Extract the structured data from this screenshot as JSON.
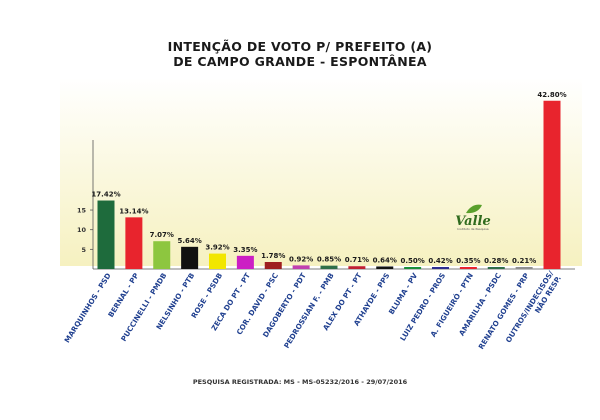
{
  "chart_data": {
    "type": "bar",
    "title_lines": [
      "INTENÇÃO DE VOTO P/ PREFEITO (A)",
      "DE CAMPO GRANDE - ESPONTÂNEA"
    ],
    "categories": [
      "MARQUINHOS - PSD",
      "BERNAL - PP",
      "PUCCINELLI - PMDB",
      "NELSINHO - PTB",
      "ROSE - PSDB",
      "ZECA DO PT - PT",
      "COR. DAVID - PSC",
      "DAGOBERTO - PDT",
      "PEDROSSIAN F. - PMB",
      "ALEX DO PT - PT",
      "ATHAYDE - PPS",
      "BLUMA - PV",
      "LUIZ PEDRO - PROS",
      "A. FIGUEIRÓ - PTN",
      "AMARILHA - PSDC",
      "RENATO GOMES - PRP",
      "OUTROS/INDECISOS/ NÃO RESP."
    ],
    "values": [
      17.42,
      13.14,
      7.07,
      5.64,
      3.92,
      3.35,
      1.78,
      0.92,
      0.85,
      0.71,
      0.64,
      0.5,
      0.42,
      0.35,
      0.28,
      0.21,
      42.8
    ],
    "value_labels": [
      "17.42%",
      "13.14%",
      "7.07%",
      "5.64%",
      "3.92%",
      "3.35%",
      "1.78%",
      "0.92%",
      "0.85%",
      "0.71%",
      "0.64%",
      "0.50%",
      "0.42%",
      "0.35%",
      "0.28%",
      "0.21%",
      "42.80%"
    ],
    "colors": [
      "#1e6b3c",
      "#e8242d",
      "#8dc63f",
      "#111111",
      "#f2e600",
      "#cc1fc4",
      "#9e1f1f",
      "#c040b0",
      "#2f6e4a",
      "#c02030",
      "#111111",
      "#1a8f3a",
      "#2d2d8f",
      "#e8242d",
      "#2f6e4a",
      "#8f8f8f",
      "#e8242d"
    ],
    "y_ticks": [
      5,
      10,
      15
    ],
    "y_tick_labels": [
      "5",
      "10",
      "15"
    ],
    "ylim": [
      0,
      43.5
    ],
    "xlabel": "",
    "ylabel": "",
    "grid": false,
    "legend": "none"
  },
  "logo": {
    "name": "Valle",
    "subtitle": "Instituto de Pesquisa"
  },
  "footer": "PESQUISA REGISTRADA: MS - MS-05232/2016 - 29/07/2016",
  "colors": {
    "background_top": "#ffffff",
    "background_bottom": "#f6f1c0",
    "axis": "#555555"
  }
}
